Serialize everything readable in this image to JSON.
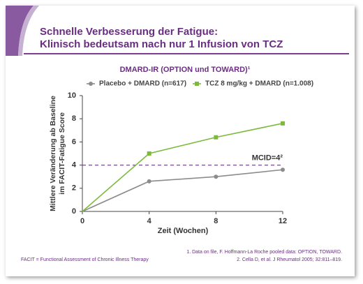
{
  "chart_data": {
    "type": "line",
    "slide_title": [
      "Schnelle Verbesserung der Fatigue:",
      "Klinisch bedeutsam nach nur 1 Infusion von TCZ"
    ],
    "title": "DMARD-IR (OPTION und TOWARD)¹",
    "x_label": "Zeit (Wochen)",
    "y_label": [
      "Mittlere Veränderung ab Baseline",
      "im FACIT-Fatigue Score"
    ],
    "x": [
      0,
      4,
      8,
      12
    ],
    "series": [
      {
        "name": "Placebo + DMARD (n=617)",
        "color": "#8c8c8c",
        "marker": "circle",
        "values": [
          0,
          2.6,
          3.0,
          3.6
        ]
      },
      {
        "name": "TCZ 8 mg/kg + DMARD (n=1.008)",
        "color": "#7dba3c",
        "marker": "square",
        "values": [
          0,
          5.0,
          6.4,
          7.6
        ]
      }
    ],
    "xlim": [
      0,
      12
    ],
    "xticks": [
      0,
      4,
      8,
      12
    ],
    "ylim": [
      0,
      10
    ],
    "yticks": [
      0,
      2,
      4,
      6,
      8,
      10
    ],
    "reference_line": {
      "value": 4,
      "label": "MCID=4²",
      "color": "#7b4a8c"
    },
    "footnotes": [
      "1. Data on file, F. Hoffmann-La Roche pooled data: OPTION, TOWARD.",
      "2. Cella D, et al. J Rheumatol 2005; 32:811–819."
    ],
    "abbreviation": "FACIT = Functional Assessment of Chronic Illness Therapy"
  }
}
